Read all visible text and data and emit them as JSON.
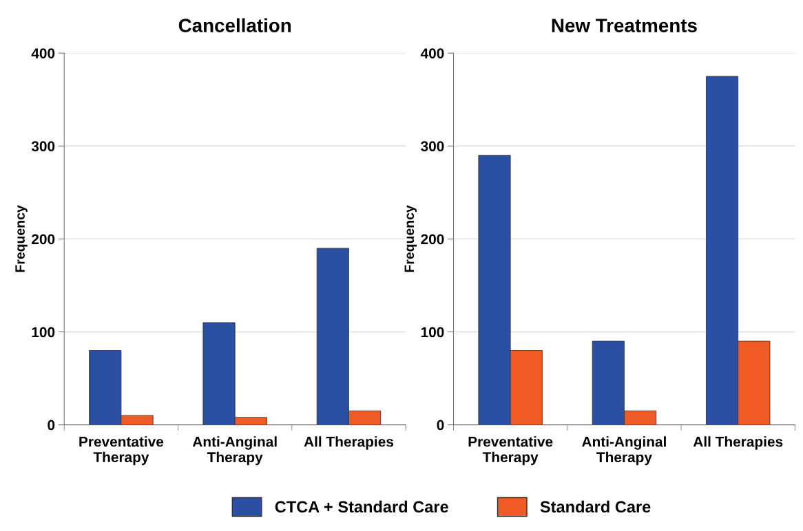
{
  "chart_data": [
    {
      "type": "bar",
      "title": "Cancellation",
      "ylabel": "Frequency",
      "categories": [
        "Preventative\nTherapy",
        "Anti-Anginal\nTherapy",
        "All Therapies"
      ],
      "series": [
        {
          "name": "CTCA + Standard Care",
          "color": "#2a4fa3",
          "values": [
            80,
            110,
            190
          ]
        },
        {
          "name": "Standard Care",
          "color": "#f05a24",
          "values": [
            10,
            8,
            15
          ]
        }
      ],
      "ylim": [
        0,
        400
      ],
      "yticks": [
        0,
        100,
        200,
        300,
        400
      ],
      "grid": "y",
      "legend": "bottom"
    },
    {
      "type": "bar",
      "title": "New Treatments",
      "ylabel": "Frequency",
      "categories": [
        "Preventative\nTherapy",
        "Anti-Anginal\nTherapy",
        "All Therapies"
      ],
      "series": [
        {
          "name": "CTCA + Standard Care",
          "color": "#2a4fa3",
          "values": [
            290,
            90,
            375
          ]
        },
        {
          "name": "Standard Care",
          "color": "#f05a24",
          "values": [
            80,
            15,
            90
          ]
        }
      ],
      "ylim": [
        0,
        400
      ],
      "yticks": [
        0,
        100,
        200,
        300,
        400
      ],
      "grid": "y"
    }
  ]
}
